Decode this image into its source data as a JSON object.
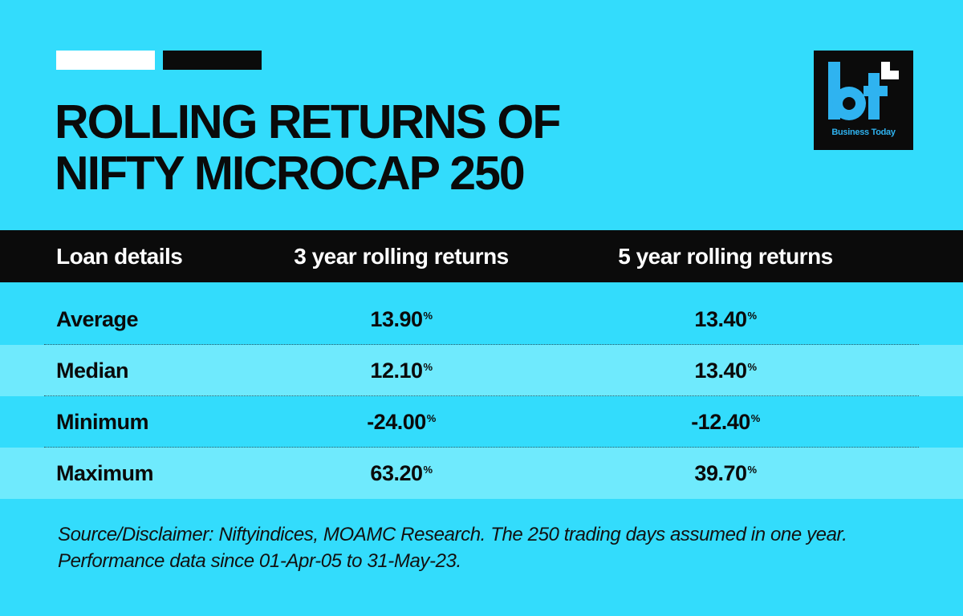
{
  "header": {
    "title_line1": "ROLLING RETURNS OF",
    "title_line2": "NIFTY MICROCAP 250"
  },
  "logo": {
    "mark": "bt",
    "caption": "Business Today"
  },
  "colors": {
    "background": "#33dcfc",
    "row_alt": "#6feafd",
    "header_bg": "#0b0b0b",
    "logo_blue": "#2fb3f0"
  },
  "chart_data": {
    "type": "table",
    "columns": [
      "Loan details",
      "3 year rolling returns",
      "5 year rolling returns"
    ],
    "rows": [
      {
        "label": "Average",
        "values": [
          "13.90",
          "13.40"
        ]
      },
      {
        "label": "Median",
        "values": [
          "12.10",
          "13.40"
        ]
      },
      {
        "label": "Minimum",
        "values": [
          "-24.00",
          "-12.40"
        ]
      },
      {
        "label": "Maximum",
        "values": [
          "63.20",
          "39.70"
        ]
      }
    ],
    "unit": "%"
  },
  "footnote": "Source/Disclaimer: Niftyindices, MOAMC Research. The 250 trading days assumed in one year. Performance data since 01-Apr-05 to 31-May-23."
}
